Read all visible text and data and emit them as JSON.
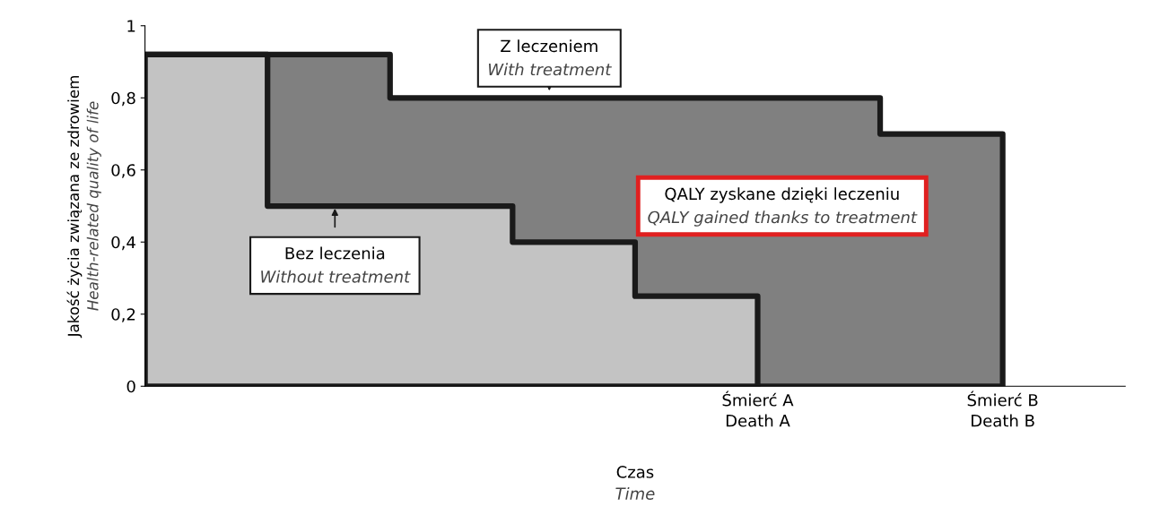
{
  "chart_data": {
    "type": "step",
    "xlabel": "Czas\nTime",
    "ylabel": "Jakość życia związana ze zdrowiem\nHealth-related quality of life",
    "categories": [
      null,
      null,
      null,
      null,
      null,
      "Śmierć A\nDeath A",
      null,
      "Śmierć B\nDeath B",
      null
    ],
    "series": [
      {
        "name": "Z leczeniem",
        "type": "area",
        "color": "#808080",
        "values": [
          0.92,
          0.92,
          0.8,
          0.8,
          0.8,
          0.8,
          0.7,
          0,
          null
        ]
      },
      {
        "name": "Bez leczenia",
        "type": "area",
        "color": "#c3c3c3",
        "values": [
          0.92,
          0.5,
          0.5,
          0.4,
          0.25,
          0,
          null,
          null,
          null
        ]
      }
    ],
    "ylim": [
      0,
      1
    ],
    "yticks": [
      {
        "value": 0,
        "label": "0"
      },
      {
        "value": 0.2,
        "label": "0,2"
      },
      {
        "value": 0.4,
        "label": "0,4"
      },
      {
        "value": 0.6,
        "label": "0,6"
      },
      {
        "value": 0.8,
        "label": "0,8"
      },
      {
        "value": 1,
        "label": "1"
      }
    ],
    "annotations": [
      "With treatment",
      "Without treatment",
      "QALY zyskane dzięki leczeniu\nQALY gained thanks to treatment"
    ],
    "grid": false,
    "legend": false
  }
}
